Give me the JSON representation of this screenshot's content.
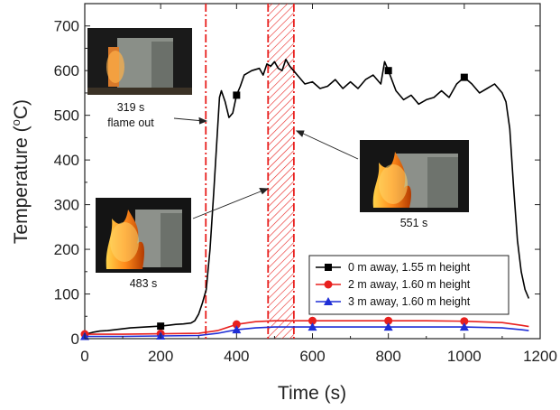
{
  "chart_data": {
    "type": "line",
    "xlabel": "Time (s)",
    "ylabel_main": "Temperature (",
    "ylabel_sup": "o",
    "ylabel_end": "C)",
    "xlim": [
      0,
      1200
    ],
    "ylim": [
      0,
      750
    ],
    "x_ticks": [
      0,
      200,
      400,
      600,
      800,
      1000,
      1200
    ],
    "y_ticks": [
      0,
      100,
      200,
      300,
      400,
      500,
      600,
      700
    ],
    "legend_position": "bottom-right",
    "grid": false,
    "series": [
      {
        "name": "0 m away, 1.55 m height",
        "color": "#000000",
        "marker": "square",
        "x": [
          0,
          20,
          40,
          60,
          80,
          100,
          120,
          140,
          160,
          180,
          200,
          220,
          240,
          260,
          280,
          290,
          300,
          310,
          320,
          330,
          340,
          350,
          355,
          360,
          370,
          380,
          390,
          400,
          410,
          420,
          440,
          460,
          470,
          480,
          490,
          500,
          510,
          520,
          530,
          540,
          550,
          560,
          580,
          600,
          620,
          640,
          660,
          680,
          700,
          720,
          740,
          760,
          780,
          790,
          800,
          820,
          840,
          860,
          880,
          900,
          920,
          940,
          960,
          980,
          1000,
          1020,
          1040,
          1060,
          1080,
          1100,
          1110,
          1120,
          1130,
          1140,
          1150,
          1160,
          1170
        ],
        "y": [
          10,
          14,
          17,
          18,
          20,
          22,
          24,
          25,
          26,
          27,
          28,
          30,
          32,
          33,
          35,
          40,
          55,
          80,
          110,
          200,
          330,
          470,
          540,
          555,
          530,
          495,
          505,
          545,
          565,
          590,
          600,
          605,
          590,
          615,
          610,
          620,
          605,
          600,
          625,
          610,
          600,
          590,
          570,
          575,
          560,
          565,
          580,
          560,
          575,
          560,
          580,
          590,
          570,
          620,
          600,
          555,
          535,
          545,
          525,
          535,
          540,
          555,
          540,
          570,
          585,
          570,
          550,
          560,
          570,
          550,
          530,
          470,
          340,
          220,
          150,
          110,
          90
        ],
        "marker_x": [
          200,
          400,
          800,
          1000
        ]
      },
      {
        "name": "2 m away, 1.60 m height",
        "color": "#e8201e",
        "marker": "circle",
        "x": [
          0,
          100,
          200,
          300,
          350,
          400,
          450,
          500,
          600,
          700,
          800,
          900,
          1000,
          1100,
          1150,
          1170
        ],
        "y": [
          10,
          10,
          11,
          12,
          18,
          32,
          38,
          40,
          40,
          40,
          40,
          40,
          39,
          36,
          30,
          27
        ],
        "marker_x": [
          0,
          200,
          400,
          600,
          800,
          1000
        ]
      },
      {
        "name": "3 m away, 1.60 m height",
        "color": "#1f2ed6",
        "marker": "triangle",
        "x": [
          0,
          100,
          200,
          300,
          350,
          400,
          450,
          500,
          600,
          700,
          800,
          900,
          1000,
          1100,
          1150,
          1170
        ],
        "y": [
          5,
          5,
          6,
          7,
          12,
          20,
          24,
          26,
          26,
          26,
          26,
          26,
          26,
          24,
          20,
          18
        ],
        "marker_x": [
          0,
          200,
          400,
          600,
          800,
          1000
        ]
      }
    ],
    "event_lines": [
      {
        "x": 319,
        "color": "#e8201e"
      },
      {
        "x": 483,
        "color": "#e8201e"
      },
      {
        "x": 551,
        "color": "#e8201e"
      }
    ],
    "shaded_region": {
      "x": [
        483,
        551
      ],
      "color": "#e8201e",
      "pattern": "hatched"
    },
    "annotations": [
      {
        "id": "photo-319",
        "caption_lines": [
          "319 s",
          "flame out"
        ]
      },
      {
        "id": "photo-483",
        "caption_lines": [
          "483 s"
        ]
      },
      {
        "id": "photo-551",
        "caption_lines": [
          "551 s"
        ]
      }
    ]
  }
}
